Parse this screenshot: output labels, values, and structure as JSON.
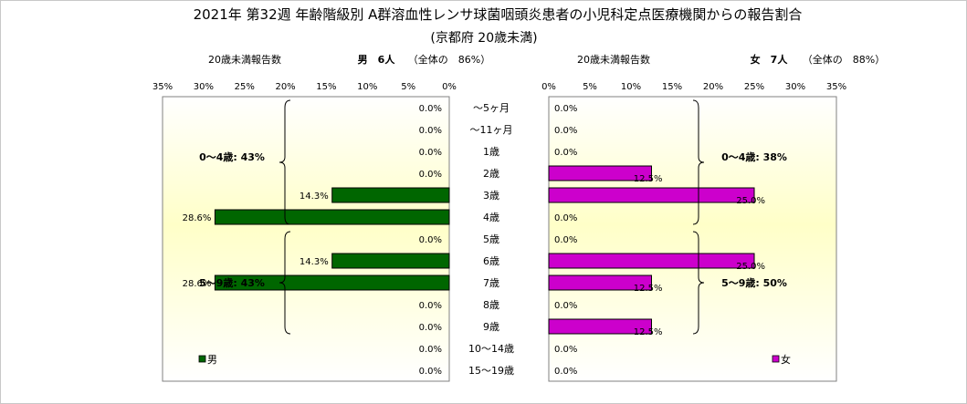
{
  "title": "2021年 第32週 年齢階級別 A群溶血性レンサ球菌咽頭炎患者の小児科定点医療機関からの報告割合",
  "subtitle": "(京都府 20歳未満)",
  "chart_data": {
    "type": "bar",
    "orientation": "horizontal",
    "categories": [
      "～5ヶ月",
      "～11ヶ月",
      "1歳",
      "2歳",
      "3歳",
      "4歳",
      "5歳",
      "6歳",
      "7歳",
      "8歳",
      "9歳",
      "10～14歳",
      "15～19歳"
    ],
    "xlim": [
      0,
      35
    ],
    "ticks": [
      "0%",
      "5%",
      "10%",
      "15%",
      "20%",
      "25%",
      "30%",
      "35%"
    ],
    "panels": [
      {
        "side": "left",
        "header_label": "20歳未満報告数",
        "header_count": "男　6人",
        "header_share": "（全体の　86%）",
        "series": {
          "name": "男",
          "color": "#006600",
          "values": [
            0.0,
            0.0,
            0.0,
            0.0,
            14.3,
            28.6,
            0.0,
            14.3,
            28.6,
            0.0,
            0.0,
            0.0,
            0.0
          ],
          "labels": [
            "0.0%",
            "0.0%",
            "0.0%",
            "0.0%",
            "14.3%",
            "28.6%",
            "0.0%",
            "14.3%",
            "28.6%",
            "0.0%",
            "0.0%",
            "0.0%",
            "0.0%"
          ]
        },
        "groups": [
          {
            "label": "0～4歳: 43%",
            "from": 0,
            "to": 5
          },
          {
            "label": "5～9歳: 43%",
            "from": 6,
            "to": 10
          }
        ]
      },
      {
        "side": "right",
        "header_label": "20歳未満報告数",
        "header_count": "女　7人",
        "header_share": "（全体の　88%）",
        "series": {
          "name": "女",
          "color": "#cc00cc",
          "values": [
            0.0,
            0.0,
            0.0,
            12.5,
            25.0,
            0.0,
            0.0,
            25.0,
            12.5,
            0.0,
            12.5,
            0.0,
            0.0
          ],
          "labels": [
            "0.0%",
            "0.0%",
            "0.0%",
            "12.5%",
            "25.0%",
            "0.0%",
            "0.0%",
            "25.0%",
            "12.5%",
            "0.0%",
            "12.5%",
            "0.0%",
            "0.0%"
          ]
        },
        "groups": [
          {
            "label": "0～4歳: 38%",
            "from": 0,
            "to": 5
          },
          {
            "label": "5～9歳: 50%",
            "from": 6,
            "to": 10
          }
        ]
      }
    ],
    "grid": false
  }
}
